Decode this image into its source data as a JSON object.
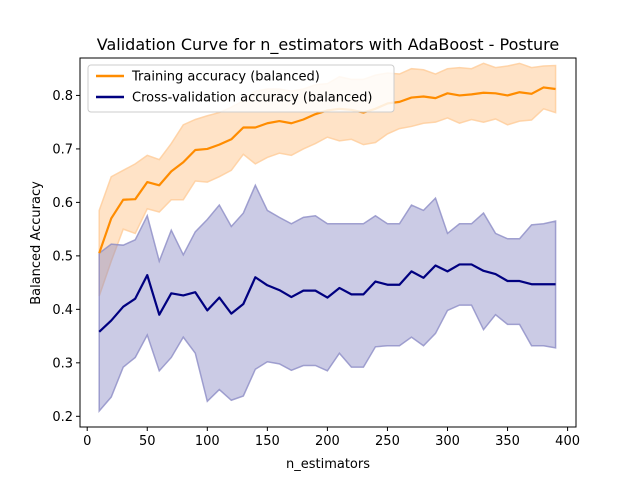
{
  "chart_data": {
    "type": "line",
    "title": "Validation Curve for n_estimators with AdaBoost - Posture",
    "xlabel": "n_estimators",
    "ylabel": "Balanced Accuracy",
    "xlim": [
      -6,
      407
    ],
    "ylim": [
      0.18,
      0.87
    ],
    "xticks": [
      0,
      50,
      100,
      150,
      200,
      250,
      300,
      350,
      400
    ],
    "yticks": [
      0.2,
      0.3,
      0.4,
      0.5,
      0.6,
      0.7,
      0.8
    ],
    "grid": false,
    "legend_position": "upper-left",
    "x": [
      10,
      20,
      30,
      40,
      50,
      60,
      70,
      80,
      90,
      100,
      110,
      120,
      130,
      140,
      150,
      160,
      170,
      180,
      190,
      200,
      210,
      220,
      230,
      240,
      250,
      260,
      270,
      280,
      290,
      300,
      310,
      320,
      330,
      340,
      350,
      360,
      370,
      380,
      390
    ],
    "series": [
      {
        "name": "Training accuracy (balanced)",
        "color": "#ff8c00",
        "band_color": "#ffcc99",
        "mean": [
          0.505,
          0.57,
          0.605,
          0.606,
          0.638,
          0.632,
          0.658,
          0.675,
          0.698,
          0.7,
          0.708,
          0.718,
          0.74,
          0.74,
          0.748,
          0.752,
          0.748,
          0.755,
          0.765,
          0.772,
          0.775,
          0.773,
          0.768,
          0.775,
          0.785,
          0.788,
          0.796,
          0.798,
          0.795,
          0.804,
          0.8,
          0.802,
          0.805,
          0.804,
          0.8,
          0.806,
          0.803,
          0.815,
          0.812
        ],
        "upper": [
          0.585,
          0.648,
          0.66,
          0.672,
          0.688,
          0.68,
          0.71,
          0.745,
          0.755,
          0.762,
          0.768,
          0.778,
          0.79,
          0.808,
          0.812,
          0.812,
          0.808,
          0.812,
          0.82,
          0.822,
          0.835,
          0.83,
          0.83,
          0.838,
          0.842,
          0.84,
          0.85,
          0.848,
          0.84,
          0.85,
          0.852,
          0.85,
          0.86,
          0.852,
          0.855,
          0.86,
          0.852,
          0.855,
          0.856
        ],
        "lower": [
          0.425,
          0.49,
          0.55,
          0.542,
          0.588,
          0.582,
          0.605,
          0.605,
          0.64,
          0.638,
          0.648,
          0.66,
          0.69,
          0.672,
          0.684,
          0.692,
          0.688,
          0.7,
          0.71,
          0.722,
          0.715,
          0.718,
          0.708,
          0.712,
          0.728,
          0.738,
          0.742,
          0.748,
          0.75,
          0.758,
          0.748,
          0.755,
          0.75,
          0.756,
          0.745,
          0.752,
          0.754,
          0.775,
          0.768
        ]
      },
      {
        "name": "Cross-validation accuracy (balanced)",
        "color": "#000080",
        "band_color": "#8c8cc6",
        "mean": [
          0.358,
          0.379,
          0.405,
          0.42,
          0.464,
          0.39,
          0.43,
          0.426,
          0.432,
          0.398,
          0.422,
          0.392,
          0.41,
          0.46,
          0.445,
          0.436,
          0.423,
          0.435,
          0.435,
          0.422,
          0.44,
          0.428,
          0.428,
          0.452,
          0.446,
          0.446,
          0.471,
          0.459,
          0.482,
          0.471,
          0.484,
          0.484,
          0.472,
          0.466,
          0.453,
          0.453,
          0.447,
          0.447,
          0.447
        ],
        "upper": [
          0.505,
          0.522,
          0.52,
          0.53,
          0.575,
          0.49,
          0.548,
          0.502,
          0.545,
          0.568,
          0.595,
          0.555,
          0.58,
          0.632,
          0.585,
          0.572,
          0.56,
          0.572,
          0.575,
          0.56,
          0.56,
          0.56,
          0.56,
          0.575,
          0.56,
          0.56,
          0.595,
          0.585,
          0.608,
          0.542,
          0.56,
          0.56,
          0.58,
          0.542,
          0.532,
          0.532,
          0.558,
          0.56,
          0.565
        ],
        "lower": [
          0.21,
          0.236,
          0.292,
          0.31,
          0.352,
          0.285,
          0.31,
          0.348,
          0.318,
          0.228,
          0.25,
          0.23,
          0.238,
          0.288,
          0.302,
          0.298,
          0.286,
          0.295,
          0.295,
          0.285,
          0.318,
          0.292,
          0.292,
          0.33,
          0.332,
          0.332,
          0.348,
          0.332,
          0.355,
          0.398,
          0.408,
          0.408,
          0.362,
          0.39,
          0.372,
          0.372,
          0.332,
          0.332,
          0.328
        ]
      }
    ]
  }
}
